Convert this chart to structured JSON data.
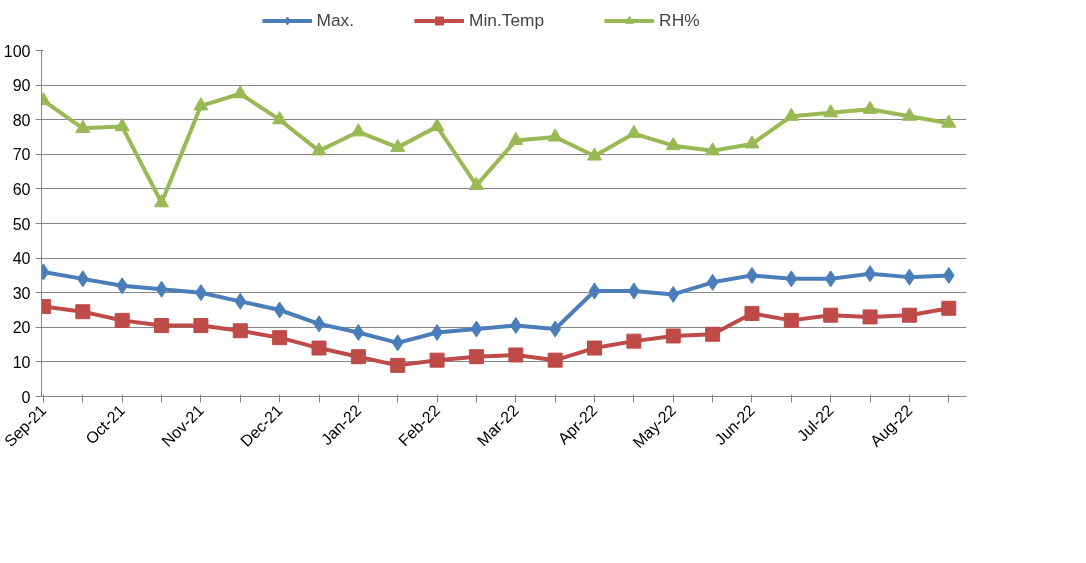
{
  "chart_data": {
    "type": "line",
    "categories": [
      "Sep-21",
      null,
      "Oct-21",
      null,
      "Nov-21",
      null,
      "Dec-21",
      null,
      "Jan-22",
      null,
      "Feb-22",
      null,
      "Mar-22",
      null,
      "Apr-22",
      null,
      "May-22",
      null,
      "Jun-22",
      null,
      "Jul-22",
      null,
      "Aug-22",
      null
    ],
    "series": [
      {
        "name": "Max.",
        "color": "#4a7ebb",
        "marker": "diamond",
        "values": [
          36,
          34,
          32,
          31,
          30,
          27.5,
          25,
          21,
          18.5,
          15.5,
          18.5,
          19.5,
          20.5,
          19.5,
          30.5,
          30.5,
          29.5,
          33,
          35,
          34,
          34,
          35.5,
          34.5,
          35
        ]
      },
      {
        "name": "Min.Temp",
        "color": "#be4b48",
        "marker": "square",
        "values": [
          26,
          24.5,
          22,
          20.5,
          20.5,
          19,
          17,
          14,
          11.5,
          9,
          10.5,
          11.5,
          12,
          10.5,
          14,
          16,
          17.5,
          18,
          24,
          22,
          23.5,
          23,
          23.5,
          25.5
        ]
      },
      {
        "name": "RH%",
        "color": "#98b954",
        "marker": "triangle",
        "values": [
          85.5,
          77.5,
          78,
          56,
          84,
          87.5,
          80,
          71,
          76.5,
          72,
          78,
          61,
          74,
          75,
          69.5,
          76,
          72.5,
          71,
          73,
          81,
          82,
          83,
          81,
          79
        ]
      }
    ],
    "ylim": [
      0,
      100
    ],
    "yticks": [
      0,
      10,
      20,
      30,
      40,
      50,
      60,
      70,
      80,
      90,
      100
    ],
    "grid": "y",
    "legend": "top",
    "line_style": "solid"
  }
}
